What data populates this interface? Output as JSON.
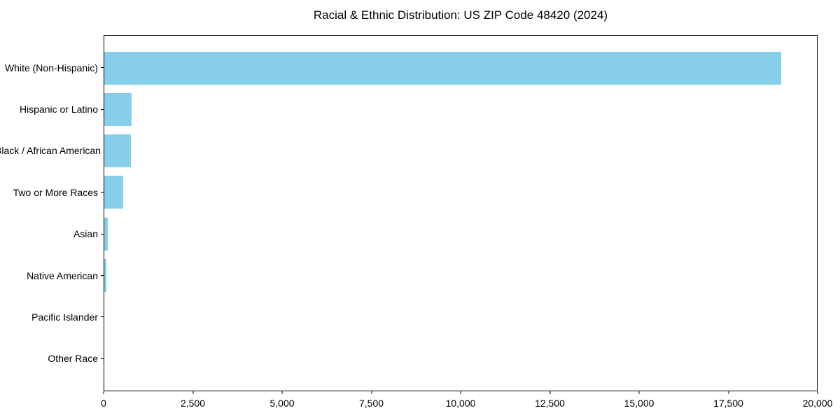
{
  "chart_data": {
    "type": "bar",
    "orientation": "horizontal",
    "title": "Racial & Ethnic Distribution: US ZIP Code 48420 (2024)",
    "categories": [
      "White (Non-Hispanic)",
      "Hispanic or Latino",
      "Black / African American",
      "Two or More Races",
      "Asian",
      "Native American",
      "Pacific Islander",
      "Other Race"
    ],
    "values": [
      19000,
      770,
      740,
      530,
      95,
      55,
      0,
      0
    ],
    "xlabel": "",
    "ylabel": "",
    "xlim": [
      0,
      20000
    ],
    "xticks": [
      0,
      2500,
      5000,
      7500,
      10000,
      12500,
      15000,
      17500,
      20000
    ],
    "xtick_labels": [
      "0",
      "2,500",
      "5,000",
      "7,500",
      "10,000",
      "12,500",
      "15,000",
      "17,500",
      "20,000"
    ],
    "bar_color": "#87CEEB",
    "grid": false,
    "legend": null
  }
}
